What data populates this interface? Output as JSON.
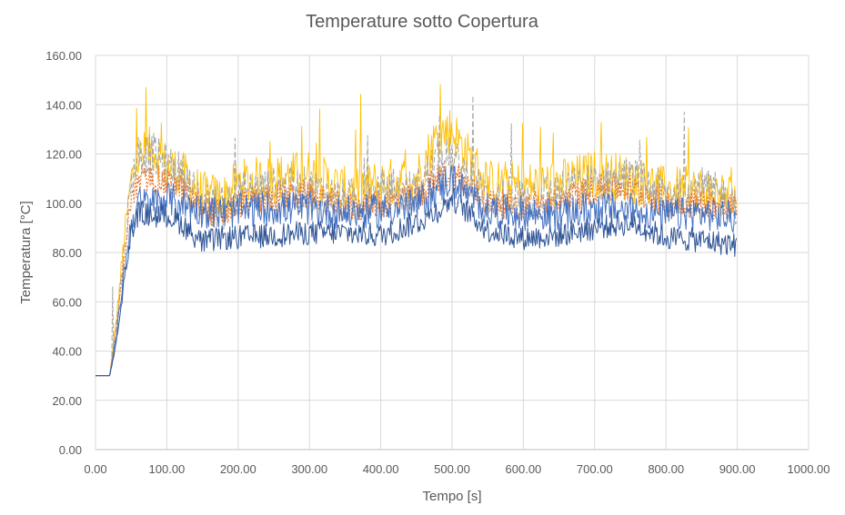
{
  "chart_data": {
    "type": "line",
    "title": "Temperature  sotto Copertura",
    "xlabel": "Tempo [s]",
    "ylabel": "Temperatura [°C]",
    "xlim": [
      0,
      1000
    ],
    "ylim": [
      0,
      160
    ],
    "xticks": [
      0,
      100,
      200,
      300,
      400,
      500,
      600,
      700,
      800,
      900,
      1000
    ],
    "yticks": [
      0,
      20,
      40,
      60,
      80,
      100,
      120,
      140,
      160
    ],
    "xtick_labels": [
      "0.00",
      "100.00",
      "200.00",
      "300.00",
      "400.00",
      "500.00",
      "600.00",
      "700.00",
      "800.00",
      "900.00",
      "1000.00"
    ],
    "ytick_labels": [
      "0.00",
      "20.00",
      "40.00",
      "60.00",
      "80.00",
      "100.00",
      "120.00",
      "140.00",
      "160.00"
    ],
    "grid": true,
    "legend": "none",
    "series": [
      {
        "color": "#ffc000",
        "dash": "solid",
        "width": 0.9,
        "x": [
          0,
          20,
          30,
          40,
          50,
          60,
          80,
          100,
          120,
          150,
          180,
          200,
          250,
          300,
          350,
          400,
          450,
          480,
          500,
          520,
          550,
          600,
          650,
          700,
          750,
          800,
          850,
          900
        ],
        "y": [
          30,
          30,
          55,
          85,
          110,
          118,
          122,
          115,
          112,
          103,
          102,
          108,
          110,
          112,
          105,
          108,
          110,
          128,
          130,
          120,
          108,
          107,
          108,
          112,
          110,
          105,
          105,
          102
        ]
      },
      {
        "color": "#a5a5a5",
        "dash": "dashed",
        "width": 1.0,
        "x": [
          0,
          20,
          30,
          40,
          50,
          60,
          80,
          100,
          120,
          150,
          180,
          200,
          250,
          300,
          350,
          400,
          450,
          480,
          500,
          520,
          550,
          600,
          650,
          700,
          750,
          800,
          850,
          900
        ],
        "y": [
          30,
          30,
          52,
          80,
          108,
          120,
          120,
          115,
          112,
          100,
          98,
          104,
          106,
          106,
          101,
          103,
          105,
          118,
          118,
          112,
          102,
          102,
          104,
          108,
          110,
          104,
          106,
          100
        ]
      },
      {
        "color": "#ed7d31",
        "dash": "dotted",
        "width": 1.3,
        "x": [
          0,
          20,
          30,
          40,
          50,
          60,
          80,
          100,
          120,
          150,
          180,
          200,
          250,
          300,
          350,
          400,
          450,
          480,
          500,
          520,
          550,
          600,
          650,
          700,
          750,
          800,
          850,
          900
        ],
        "y": [
          30,
          30,
          50,
          78,
          102,
          108,
          110,
          108,
          106,
          98,
          95,
          100,
          102,
          104,
          98,
          100,
          102,
          110,
          112,
          108,
          100,
          99,
          100,
          106,
          106,
          100,
          100,
          98
        ]
      },
      {
        "color": "#4472c4",
        "dash": "solid",
        "width": 1.0,
        "x": [
          0,
          20,
          30,
          40,
          50,
          60,
          80,
          100,
          120,
          150,
          180,
          200,
          250,
          300,
          350,
          400,
          450,
          480,
          500,
          520,
          550,
          600,
          650,
          700,
          750,
          800,
          850,
          900
        ],
        "y": [
          30,
          30,
          48,
          72,
          92,
          100,
          100,
          102,
          100,
          97,
          96,
          97,
          98,
          98,
          96,
          97,
          99,
          106,
          110,
          104,
          97,
          96,
          95,
          98,
          97,
          95,
          96,
          94
        ]
      },
      {
        "color": "#2f5597",
        "dash": "solid",
        "width": 1.0,
        "x": [
          0,
          20,
          30,
          40,
          50,
          60,
          80,
          100,
          120,
          150,
          180,
          200,
          250,
          300,
          350,
          400,
          450,
          480,
          500,
          520,
          550,
          600,
          650,
          700,
          750,
          800,
          850,
          900
        ],
        "y": [
          30,
          30,
          45,
          68,
          88,
          96,
          95,
          95,
          92,
          84,
          86,
          86,
          87,
          88,
          88,
          87,
          92,
          97,
          102,
          97,
          89,
          86,
          87,
          90,
          92,
          86,
          85,
          83
        ]
      }
    ]
  }
}
